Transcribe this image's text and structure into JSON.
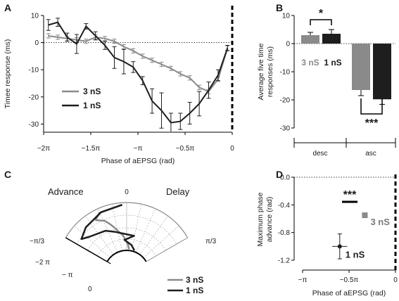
{
  "colors": {
    "ns3": "#8a8a8a",
    "ns1": "#1e1e1e"
  },
  "chart_data": [
    {
      "panel": "A",
      "type": "line",
      "xlabel": "Phase of aEPSG (rad)",
      "ylabel": "Timee response (ms)",
      "xlim": [
        -2.0,
        0.0
      ],
      "ylim": [
        -33,
        10
      ],
      "x_unit": "pi",
      "xticks": [
        -2.0,
        -1.5,
        -1.0,
        -0.5,
        0.0
      ],
      "xtick_labels": [
        "−2π",
        "−1.5π",
        "−π",
        "−0.5π",
        "0"
      ],
      "yticks": [
        10,
        0,
        -10,
        -20,
        -30
      ],
      "ytick_labels": [
        "10",
        "0",
        "-10",
        "-20",
        "-30"
      ],
      "zero_line": true,
      "legend": "center-left",
      "series": [
        {
          "name": "3 nS",
          "x": [
            -1.95,
            -1.85,
            -1.75,
            -1.65,
            -1.55,
            -1.45,
            -1.35,
            -1.25,
            -1.15,
            -1.05,
            -0.95,
            -0.85,
            -0.75,
            -0.65,
            -0.55,
            -0.45,
            -0.35,
            -0.25,
            -0.15,
            -0.05
          ],
          "y": [
            2.5,
            2.0,
            1.5,
            1.0,
            0.5,
            2.0,
            1.5,
            0.5,
            -1.5,
            -3.0,
            -5.0,
            -6.5,
            -8.0,
            -9.5,
            -11.5,
            -13.0,
            -16.5,
            -18.0,
            -13.5,
            -2.0
          ],
          "err": [
            0.8,
            0.8,
            0.8,
            0.8,
            0.8,
            0.8,
            0.8,
            0.8,
            0.8,
            0.8,
            0.8,
            0.8,
            0.8,
            0.8,
            0.8,
            0.8,
            0.8,
            0.8,
            0.8,
            0.8
          ]
        },
        {
          "name": "1 nS",
          "x": [
            -1.95,
            -1.85,
            -1.75,
            -1.65,
            -1.55,
            -1.45,
            -1.35,
            -1.25,
            -1.15,
            -1.05,
            -0.95,
            -0.85,
            -0.75,
            -0.65,
            -0.55,
            -0.45,
            -0.35,
            -0.25,
            -0.15,
            -0.05
          ],
          "y": [
            6.5,
            7.5,
            2.0,
            -0.5,
            6.0,
            2.5,
            -1.0,
            -5.5,
            -7.0,
            -9.0,
            -14.0,
            -21.5,
            -25.0,
            -29.5,
            -29.0,
            -26.0,
            -22.5,
            -17.5,
            -12.0,
            -2.0
          ],
          "err": [
            2.0,
            1.5,
            1.5,
            3.5,
            1.0,
            1.5,
            1.5,
            4.0,
            4.5,
            2.0,
            1.5,
            4.5,
            6.5,
            3.5,
            3.0,
            4.0,
            4.5,
            3.0,
            2.0,
            1.0
          ]
        }
      ]
    },
    {
      "panel": "B",
      "type": "bar",
      "ylabel": "Average five time responses (ms)",
      "ylim": [
        -30,
        10
      ],
      "yticks": [
        10,
        0,
        -10,
        -20,
        -30
      ],
      "ytick_labels": [
        "10",
        "0",
        "-10",
        "-20",
        "-30"
      ],
      "groups": [
        "desc",
        "asc"
      ],
      "series": [
        {
          "name": "3 nS",
          "values": [
            3.0,
            -16.5
          ],
          "err": [
            1.0,
            2.0
          ]
        },
        {
          "name": "1 nS",
          "values": [
            3.5,
            -19.8
          ],
          "err": [
            1.5,
            1.8
          ]
        }
      ],
      "annotations": [
        "*",
        "***"
      ]
    },
    {
      "panel": "C",
      "type": "polar",
      "labels": {
        "advance": "Advance",
        "delay": "Delay"
      },
      "tick_labels": [
        "0",
        "π/3",
        "−π/3",
        "−2 π",
        "− π",
        "0"
      ],
      "legend": [
        "3 nS",
        "1 nS"
      ],
      "series": [
        {
          "name": "3 nS",
          "phase": [
            -1.95,
            -1.75,
            -1.55,
            -1.35,
            -1.15,
            -0.95,
            -0.75,
            -0.55,
            -0.35,
            -0.15,
            -0.05
          ],
          "angle": [
            3.0,
            1.5,
            -1.0,
            -3.0,
            -6.0,
            -8.0,
            -10.0,
            -12.0,
            -16.0,
            -13.0,
            -2.0
          ]
        },
        {
          "name": "1 nS",
          "phase": [
            -1.95,
            -1.75,
            -1.55,
            -1.35,
            -1.15,
            -0.95,
            -0.75,
            -0.55,
            -0.35,
            -0.15,
            -0.05
          ],
          "angle": [
            10.0,
            5.0,
            -2.0,
            6.0,
            -8.0,
            -14.0,
            -24.0,
            -28.0,
            -22.0,
            -12.0,
            -2.0
          ]
        }
      ]
    },
    {
      "panel": "D",
      "type": "scatter",
      "xlabel": "Phase of aEPSG (rad)",
      "ylabel": "Maximum phase advance (rad)",
      "xlim": [
        -1.0,
        0.0
      ],
      "ylim": [
        -1.2,
        0.0
      ],
      "x_unit": "pi",
      "xticks": [
        -1.0,
        -0.5,
        0.0
      ],
      "xtick_labels": [
        "−π",
        "−0.5π",
        "0"
      ],
      "yticks": [
        0.0,
        -0.4,
        -0.8,
        -1.2
      ],
      "ytick_labels": [
        "0.0",
        "-0.4",
        "-0.8",
        "-1.2"
      ],
      "zero_line": true,
      "series": [
        {
          "name": "3 nS",
          "x": -0.33,
          "y": -0.55,
          "xerr": 0.02,
          "yerr": 0.02
        },
        {
          "name": "1 nS",
          "x": -0.6,
          "y": -1.0,
          "xerr": 0.08,
          "yerr": 0.18
        }
      ],
      "annotation": "***"
    }
  ],
  "panels": {
    "a": "A",
    "b": "B",
    "c": "C",
    "d": "D"
  }
}
